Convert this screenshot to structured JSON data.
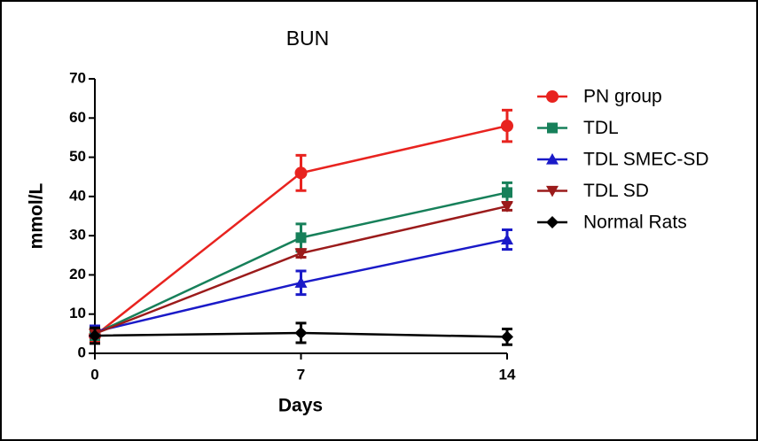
{
  "chart_data": {
    "type": "line",
    "title": "BUN",
    "x_label": "Days",
    "y_label": "mmol/L",
    "x": [
      0,
      7,
      14
    ],
    "xlim": [
      0,
      14
    ],
    "xticks": [
      0,
      7,
      14
    ],
    "ylim": [
      0,
      70
    ],
    "yticks": [
      0,
      10,
      20,
      30,
      40,
      50,
      60,
      70
    ],
    "grid": false,
    "legend": "right",
    "series": [
      {
        "name": "PN group",
        "color": "#e8231f",
        "marker": "circle",
        "values": [
          4.5,
          46,
          58
        ],
        "errors": [
          1.5,
          4.5,
          4
        ]
      },
      {
        "name": "TDL",
        "color": "#17805a",
        "marker": "square",
        "values": [
          5,
          29.5,
          41
        ],
        "errors": [
          1.5,
          3.5,
          2.5
        ]
      },
      {
        "name": "TDL SMEC-SD",
        "color": "#1a1ac8",
        "marker": "triangle",
        "values": [
          5.5,
          18,
          29
        ],
        "errors": [
          1.5,
          3,
          2.5
        ]
      },
      {
        "name": "TDL SD",
        "color": "#9b1b1b",
        "marker": "triangle-down",
        "values": [
          5,
          25.5,
          37.5
        ],
        "errors": [
          1,
          1,
          1
        ]
      },
      {
        "name": "Normal Rats",
        "color": "#000000",
        "marker": "diamond",
        "values": [
          4.5,
          5.2,
          4.2
        ],
        "errors": [
          2,
          2.5,
          2
        ]
      }
    ]
  }
}
